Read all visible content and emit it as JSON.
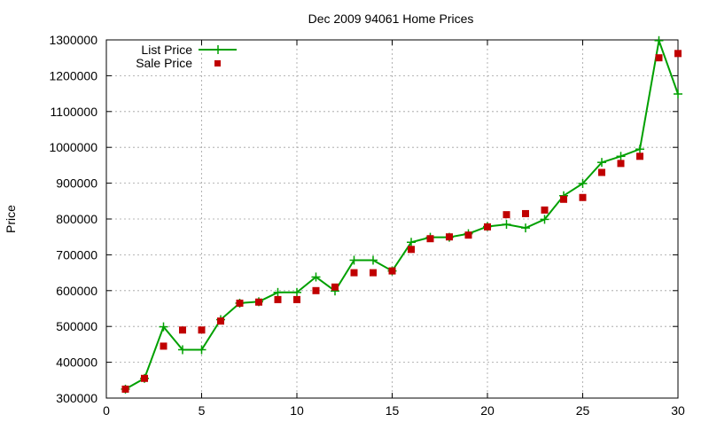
{
  "chart_data": {
    "type": "line",
    "title": "Dec 2009 94061 Home Prices",
    "xlabel": "",
    "ylabel": "Price",
    "xlim": [
      0,
      30
    ],
    "ylim": [
      300000,
      1300000
    ],
    "xticks": [
      0,
      5,
      10,
      15,
      20,
      25,
      30
    ],
    "yticks": [
      300000,
      400000,
      500000,
      600000,
      700000,
      800000,
      900000,
      1000000,
      1100000,
      1200000,
      1300000
    ],
    "xtick_labels": [
      "0",
      "5",
      "10",
      "15",
      "20",
      "25",
      "30"
    ],
    "ytick_labels": [
      "300000",
      "400000",
      "500000",
      "600000",
      "700000",
      "800000",
      "900000",
      "1000000",
      "1100000",
      "1200000",
      "1300000"
    ],
    "grid": true,
    "legend_position": "top-left",
    "x": [
      1,
      2,
      3,
      4,
      5,
      6,
      7,
      8,
      9,
      10,
      11,
      12,
      13,
      14,
      15,
      16,
      17,
      18,
      19,
      20,
      21,
      22,
      23,
      24,
      25,
      26,
      27,
      28,
      29,
      30
    ],
    "series": [
      {
        "name": "List Price",
        "style": "linespoints",
        "marker": "plus",
        "color": "#00a000",
        "values": [
          325000,
          355000,
          499000,
          435000,
          435000,
          519000,
          565000,
          569000,
          595000,
          595000,
          638000,
          599000,
          685000,
          685000,
          655000,
          735000,
          749000,
          749000,
          759000,
          779000,
          785000,
          775000,
          799000,
          865000,
          899000,
          958000,
          975000,
          995000,
          1298000,
          1149000
        ]
      },
      {
        "name": "Sale Price",
        "style": "points",
        "marker": "square",
        "color": "#c00000",
        "values": [
          325000,
          355000,
          445000,
          490000,
          490000,
          515000,
          565000,
          568000,
          575000,
          575000,
          600000,
          610000,
          650000,
          650000,
          655000,
          715000,
          745000,
          750000,
          755000,
          778000,
          812000,
          815000,
          825000,
          855000,
          860000,
          930000,
          955000,
          975000,
          1250000,
          1262000
        ]
      }
    ]
  }
}
